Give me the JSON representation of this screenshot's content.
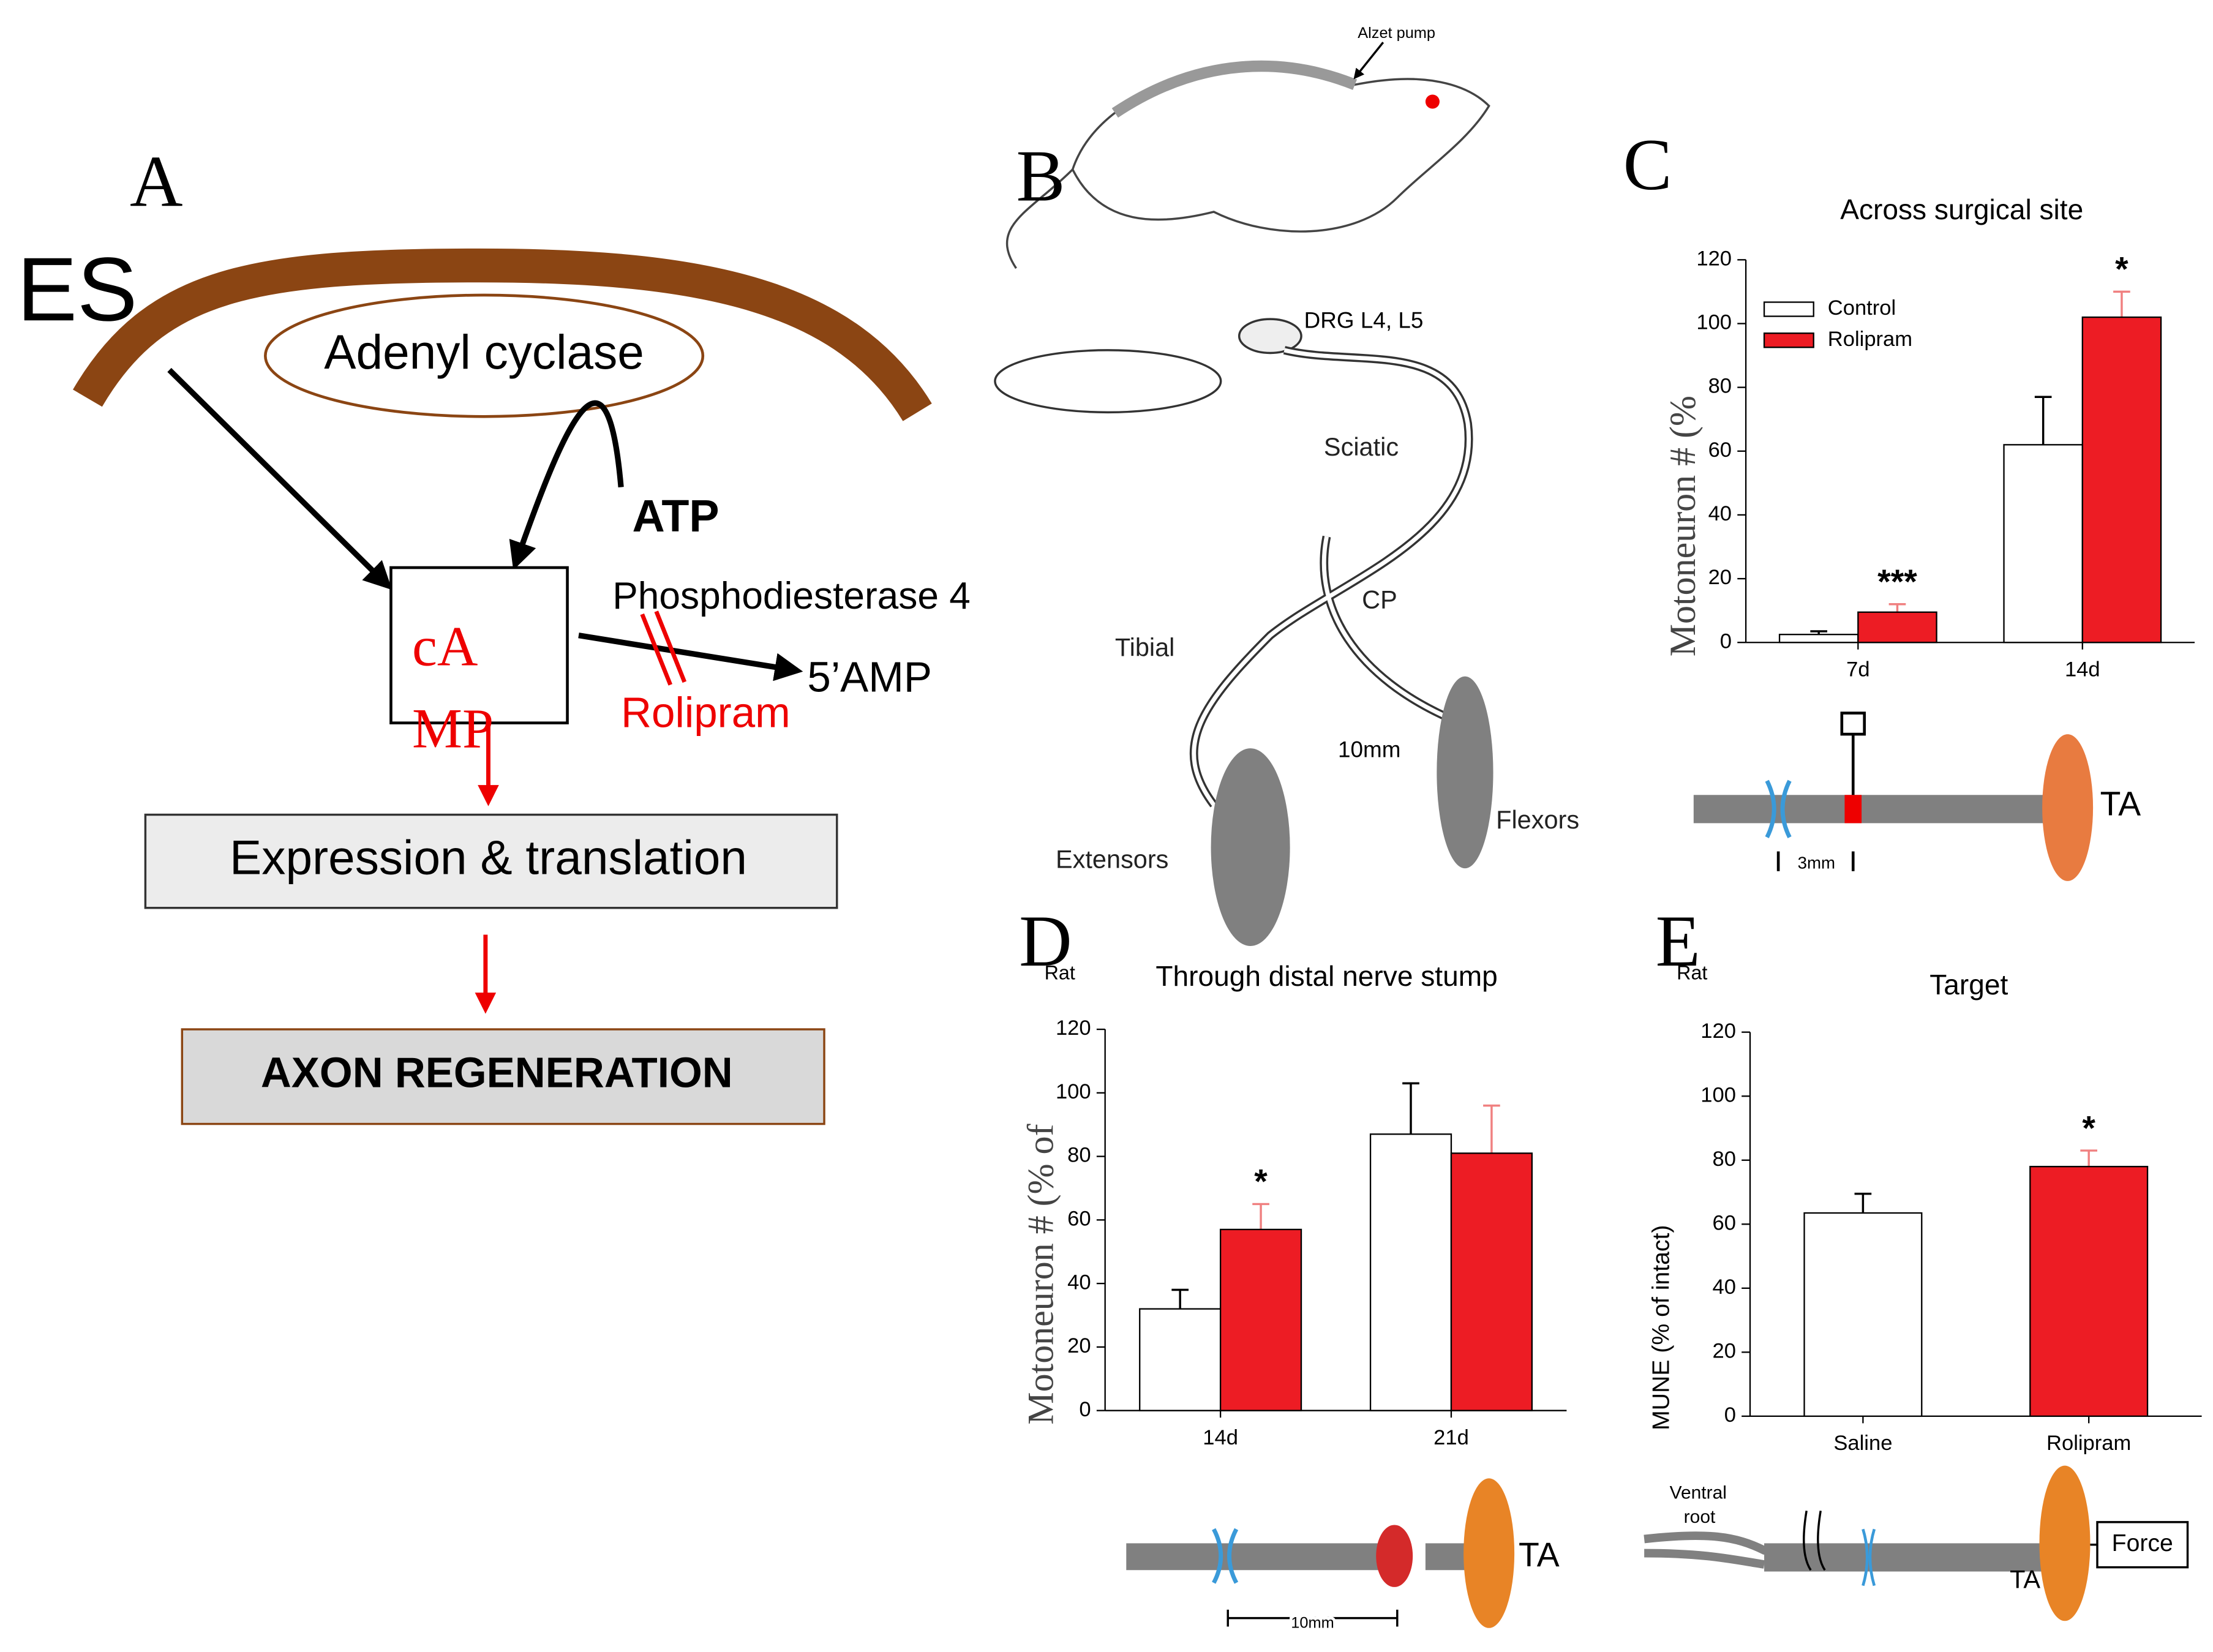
{
  "panels": {
    "A": {
      "label": "A",
      "es": "ES",
      "adenyl": "Adenyl cyclase",
      "atp": "ATP",
      "camp": [
        "cA",
        "MP"
      ],
      "pde": "Phosphodiesterase 4",
      "rolipram": "Rolipram",
      "amp": "5’AMP",
      "expression": "Expression & translation",
      "axon": "AXON REGENERATION"
    },
    "B": {
      "label": "B",
      "pump": "Alzet pump",
      "drg": "DRG L4, L5",
      "sciatic": "Sciatic",
      "cp": "CP",
      "tibial": "Tibial",
      "mm": "10mm",
      "extensors": "Extensors",
      "flexors": "Flexors"
    },
    "C": {
      "label": "C",
      "ta": "TA",
      "mm": "3mm"
    },
    "D": {
      "label": "D",
      "rat": "Rat",
      "ta": "TA",
      "mm": "10mm"
    },
    "E": {
      "label": "E",
      "rat": "Rat",
      "ta": "TA",
      "force": "Force",
      "root": [
        "Ventral",
        "root"
      ]
    }
  },
  "chart_data": [
    {
      "type": "bar",
      "title": "Across surgical site",
      "ylabel": "Motoneuron # (%",
      "categories": [
        "7d",
        "14d"
      ],
      "series": [
        {
          "name": "Control",
          "color": "#ffffff",
          "values": [
            2.5,
            62
          ],
          "errors": [
            1,
            15
          ]
        },
        {
          "name": "Rolipram",
          "color": "#ed1c24",
          "values": [
            9.5,
            102
          ],
          "errors": [
            2.5,
            8
          ],
          "annotations": [
            "***",
            "*"
          ]
        }
      ],
      "ylim": [
        0,
        120
      ],
      "yticks": [
        0,
        20,
        40,
        60,
        80,
        100,
        120
      ],
      "legend": "upper left"
    },
    {
      "type": "bar",
      "title": "Through distal nerve stump",
      "ylabel": "Motoneuron # (% of",
      "categories": [
        "14d",
        "21d"
      ],
      "series": [
        {
          "color": "#ffffff",
          "values": [
            32,
            87
          ],
          "errors": [
            6,
            16
          ]
        },
        {
          "color": "#ed1c24",
          "values": [
            57,
            81
          ],
          "errors": [
            8,
            15
          ],
          "annotations": [
            "*",
            null
          ]
        }
      ],
      "ylim": [
        0,
        120
      ],
      "yticks": [
        0,
        20,
        40,
        60,
        80,
        100,
        120
      ]
    },
    {
      "type": "bar",
      "title": "Target",
      "ylabel": "MUNE (% of intact)",
      "categories": [
        "Saline",
        "Rolipram"
      ],
      "series": [
        {
          "colors": [
            "#ffffff",
            "#ed1c24"
          ],
          "values": [
            63.5,
            78
          ],
          "errors": [
            6,
            5
          ],
          "annotations": [
            null,
            "*"
          ]
        }
      ],
      "ylim": [
        0,
        120
      ],
      "yticks": [
        0,
        20,
        40,
        60,
        80,
        100,
        120
      ]
    }
  ]
}
